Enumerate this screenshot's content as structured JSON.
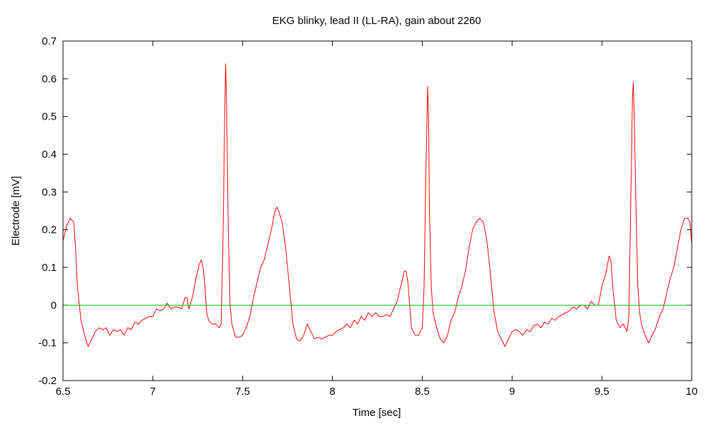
{
  "chart_data": {
    "type": "line",
    "title": "EKG blinky, lead II (LL-RA), gain about 2260",
    "xlabel": "Time [sec]",
    "ylabel": "Electrode [mV]",
    "xlim": [
      6.5,
      10
    ],
    "ylim": [
      -0.2,
      0.7
    ],
    "x_ticks": [
      6.5,
      7,
      7.5,
      8,
      8.5,
      9,
      9.5,
      10
    ],
    "x_tick_labels": [
      "6.5",
      "7",
      "7.5",
      "8",
      "8.5",
      "9",
      "9.5",
      "10"
    ],
    "y_ticks": [
      -0.2,
      -0.1,
      0,
      0.1,
      0.2,
      0.3,
      0.4,
      0.5,
      0.6,
      0.7
    ],
    "y_tick_labels": [
      "-0.2",
      "-0.1",
      "0",
      "0.1",
      "0.2",
      "0.3",
      "0.4",
      "0.5",
      "0.6",
      "0.7"
    ],
    "grid": false,
    "colors": {
      "signal": "#ff0000",
      "baseline": "#00c000"
    },
    "series": [
      {
        "key": "signal",
        "points": [
          [
            6.5,
            0.17
          ],
          [
            6.52,
            0.21
          ],
          [
            6.54,
            0.23
          ],
          [
            6.56,
            0.22
          ],
          [
            6.57,
            0.15
          ],
          [
            6.58,
            0.05
          ],
          [
            6.6,
            -0.04
          ],
          [
            6.62,
            -0.08
          ],
          [
            6.64,
            -0.11
          ],
          [
            6.66,
            -0.09
          ],
          [
            6.68,
            -0.07
          ],
          [
            6.7,
            -0.06
          ],
          [
            6.72,
            -0.065
          ],
          [
            6.74,
            -0.06
          ],
          [
            6.76,
            -0.08
          ],
          [
            6.78,
            -0.065
          ],
          [
            6.8,
            -0.07
          ],
          [
            6.82,
            -0.065
          ],
          [
            6.84,
            -0.08
          ],
          [
            6.86,
            -0.06
          ],
          [
            6.88,
            -0.065
          ],
          [
            6.9,
            -0.045
          ],
          [
            6.92,
            -0.05
          ],
          [
            6.94,
            -0.04
          ],
          [
            6.96,
            -0.035
          ],
          [
            6.98,
            -0.03
          ],
          [
            7.0,
            -0.03
          ],
          [
            7.02,
            -0.01
          ],
          [
            7.04,
            -0.015
          ],
          [
            7.06,
            -0.01
          ],
          [
            7.08,
            0.005
          ],
          [
            7.1,
            -0.01
          ],
          [
            7.12,
            -0.005
          ],
          [
            7.14,
            -0.005
          ],
          [
            7.16,
            -0.01
          ],
          [
            7.18,
            0.02
          ],
          [
            7.19,
            0.02
          ],
          [
            7.2,
            -0.01
          ],
          [
            7.22,
            0.02
          ],
          [
            7.24,
            0.07
          ],
          [
            7.26,
            0.11
          ],
          [
            7.27,
            0.12
          ],
          [
            7.28,
            0.1
          ],
          [
            7.29,
            0.05
          ],
          [
            7.3,
            -0.02
          ],
          [
            7.31,
            -0.04
          ],
          [
            7.33,
            -0.05
          ],
          [
            7.35,
            -0.05
          ],
          [
            7.37,
            -0.06
          ],
          [
            7.38,
            -0.05
          ],
          [
            7.39,
            0.15
          ],
          [
            7.4,
            0.5
          ],
          [
            7.405,
            0.64
          ],
          [
            7.41,
            0.55
          ],
          [
            7.42,
            0.2
          ],
          [
            7.43,
            0.0
          ],
          [
            7.44,
            -0.05
          ],
          [
            7.46,
            -0.085
          ],
          [
            7.48,
            -0.085
          ],
          [
            7.5,
            -0.08
          ],
          [
            7.52,
            -0.06
          ],
          [
            7.54,
            -0.03
          ],
          [
            7.56,
            0.02
          ],
          [
            7.58,
            0.06
          ],
          [
            7.6,
            0.1
          ],
          [
            7.62,
            0.12
          ],
          [
            7.64,
            0.16
          ],
          [
            7.66,
            0.2
          ],
          [
            7.68,
            0.25
          ],
          [
            7.69,
            0.26
          ],
          [
            7.7,
            0.25
          ],
          [
            7.72,
            0.22
          ],
          [
            7.74,
            0.15
          ],
          [
            7.76,
            0.05
          ],
          [
            7.78,
            -0.05
          ],
          [
            7.8,
            -0.09
          ],
          [
            7.82,
            -0.095
          ],
          [
            7.84,
            -0.08
          ],
          [
            7.86,
            -0.05
          ],
          [
            7.88,
            -0.07
          ],
          [
            7.9,
            -0.09
          ],
          [
            7.92,
            -0.085
          ],
          [
            7.94,
            -0.09
          ],
          [
            7.96,
            -0.085
          ],
          [
            7.98,
            -0.08
          ],
          [
            8.0,
            -0.08
          ],
          [
            8.02,
            -0.07
          ],
          [
            8.04,
            -0.065
          ],
          [
            8.06,
            -0.06
          ],
          [
            8.08,
            -0.05
          ],
          [
            8.1,
            -0.06
          ],
          [
            8.12,
            -0.04
          ],
          [
            8.14,
            -0.05
          ],
          [
            8.16,
            -0.03
          ],
          [
            8.18,
            -0.04
          ],
          [
            8.2,
            -0.02
          ],
          [
            8.22,
            -0.03
          ],
          [
            8.24,
            -0.02
          ],
          [
            8.26,
            -0.03
          ],
          [
            8.28,
            -0.03
          ],
          [
            8.3,
            -0.025
          ],
          [
            8.32,
            -0.03
          ],
          [
            8.34,
            -0.01
          ],
          [
            8.36,
            0.01
          ],
          [
            8.38,
            0.05
          ],
          [
            8.4,
            0.09
          ],
          [
            8.41,
            0.09
          ],
          [
            8.42,
            0.06
          ],
          [
            8.43,
            0.0
          ],
          [
            8.44,
            -0.06
          ],
          [
            8.46,
            -0.08
          ],
          [
            8.48,
            -0.08
          ],
          [
            8.5,
            -0.06
          ],
          [
            8.51,
            0.05
          ],
          [
            8.52,
            0.35
          ],
          [
            8.53,
            0.58
          ],
          [
            8.535,
            0.5
          ],
          [
            8.54,
            0.25
          ],
          [
            8.55,
            0.05
          ],
          [
            8.56,
            -0.02
          ],
          [
            8.58,
            -0.06
          ],
          [
            8.6,
            -0.09
          ],
          [
            8.62,
            -0.1
          ],
          [
            8.64,
            -0.08
          ],
          [
            8.66,
            -0.04
          ],
          [
            8.68,
            -0.02
          ],
          [
            8.7,
            0.02
          ],
          [
            8.72,
            0.05
          ],
          [
            8.74,
            0.09
          ],
          [
            8.76,
            0.15
          ],
          [
            8.78,
            0.2
          ],
          [
            8.8,
            0.22
          ],
          [
            8.82,
            0.23
          ],
          [
            8.84,
            0.22
          ],
          [
            8.86,
            0.17
          ],
          [
            8.88,
            0.08
          ],
          [
            8.9,
            -0.02
          ],
          [
            8.92,
            -0.07
          ],
          [
            8.94,
            -0.09
          ],
          [
            8.96,
            -0.11
          ],
          [
            8.98,
            -0.09
          ],
          [
            9.0,
            -0.07
          ],
          [
            9.02,
            -0.065
          ],
          [
            9.04,
            -0.07
          ],
          [
            9.06,
            -0.08
          ],
          [
            9.08,
            -0.065
          ],
          [
            9.1,
            -0.07
          ],
          [
            9.12,
            -0.055
          ],
          [
            9.14,
            -0.05
          ],
          [
            9.16,
            -0.06
          ],
          [
            9.18,
            -0.045
          ],
          [
            9.2,
            -0.05
          ],
          [
            9.22,
            -0.035
          ],
          [
            9.24,
            -0.04
          ],
          [
            9.26,
            -0.03
          ],
          [
            9.28,
            -0.025
          ],
          [
            9.3,
            -0.02
          ],
          [
            9.32,
            -0.015
          ],
          [
            9.34,
            -0.005
          ],
          [
            9.36,
            -0.01
          ],
          [
            9.38,
            0.0
          ],
          [
            9.4,
            0.0
          ],
          [
            9.42,
            -0.01
          ],
          [
            9.44,
            0.01
          ],
          [
            9.46,
            0.0
          ],
          [
            9.48,
            0.0
          ],
          [
            9.5,
            0.05
          ],
          [
            9.52,
            0.08
          ],
          [
            9.54,
            0.13
          ],
          [
            9.55,
            0.12
          ],
          [
            9.56,
            0.05
          ],
          [
            9.58,
            -0.04
          ],
          [
            9.6,
            -0.06
          ],
          [
            9.62,
            -0.05
          ],
          [
            9.64,
            -0.07
          ],
          [
            9.65,
            -0.03
          ],
          [
            9.66,
            0.25
          ],
          [
            9.67,
            0.55
          ],
          [
            9.675,
            0.59
          ],
          [
            9.68,
            0.5
          ],
          [
            9.69,
            0.25
          ],
          [
            9.7,
            0.05
          ],
          [
            9.71,
            -0.02
          ],
          [
            9.72,
            -0.05
          ],
          [
            9.74,
            -0.08
          ],
          [
            9.76,
            -0.1
          ],
          [
            9.78,
            -0.08
          ],
          [
            9.8,
            -0.06
          ],
          [
            9.82,
            -0.03
          ],
          [
            9.84,
            -0.01
          ],
          [
            9.86,
            0.03
          ],
          [
            9.88,
            0.07
          ],
          [
            9.9,
            0.1
          ],
          [
            9.92,
            0.15
          ],
          [
            9.94,
            0.2
          ],
          [
            9.96,
            0.23
          ],
          [
            9.98,
            0.23
          ],
          [
            9.99,
            0.22
          ],
          [
            10.0,
            0.16
          ]
        ]
      },
      {
        "key": "baseline",
        "points": [
          [
            6.5,
            0
          ],
          [
            10,
            0
          ]
        ]
      }
    ]
  }
}
